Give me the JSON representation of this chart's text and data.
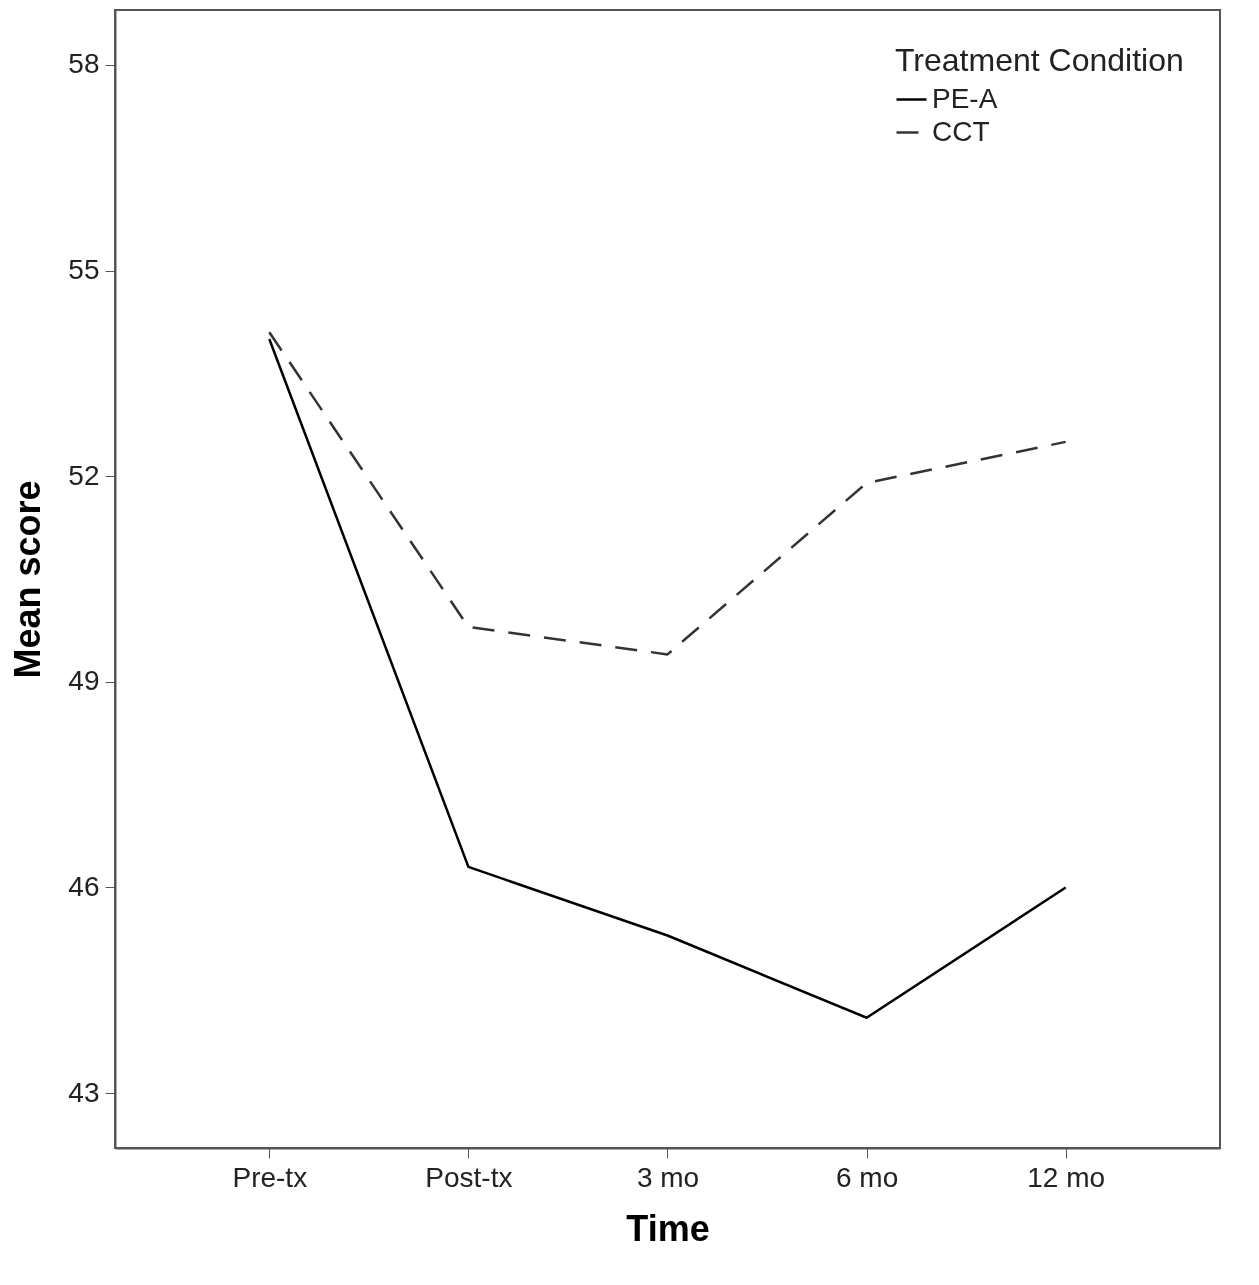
{
  "chart_data": {
    "type": "line",
    "xlabel": "Time",
    "ylabel": "Mean score",
    "legend_title": "Treatment Condition",
    "categories": [
      "Pre-tx",
      "Post-tx",
      "3 mo",
      "6 mo",
      "12 mo"
    ],
    "series": [
      {
        "name": "PE-A",
        "color": "#000000",
        "line_style": "solid",
        "values": [
          54.0,
          46.3,
          45.3,
          44.1,
          46.0
        ]
      },
      {
        "name": "CCT",
        "color": "#333333",
        "line_style": "dashed",
        "values": [
          54.1,
          49.8,
          49.4,
          51.9,
          52.5
        ]
      }
    ],
    "ylim": [
      42.2,
      58.8
    ],
    "yticks": [
      43,
      46,
      49,
      52,
      55,
      58
    ],
    "grid": false,
    "legend": "top right",
    "marker": "none"
  }
}
